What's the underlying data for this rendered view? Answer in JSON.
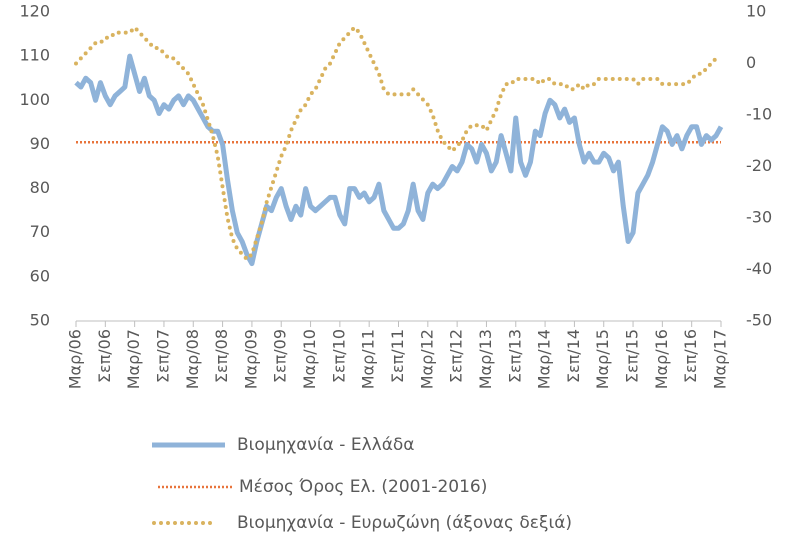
{
  "chart_data": {
    "type": "line",
    "categories": [
      "Μαρ/06",
      null,
      null,
      null,
      null,
      null,
      "Σεπ/06",
      null,
      null,
      null,
      null,
      null,
      "Μαρ/07",
      null,
      null,
      null,
      null,
      null,
      "Σεπ/07",
      null,
      null,
      null,
      null,
      null,
      "Μαρ/08",
      null,
      null,
      null,
      null,
      null,
      "Σεπ/08",
      null,
      null,
      null,
      null,
      null,
      "Μαρ/09",
      null,
      null,
      null,
      null,
      null,
      "Σεπ/09",
      null,
      null,
      null,
      null,
      null,
      "Μαρ/10",
      null,
      null,
      null,
      null,
      null,
      "Σεπ/10",
      null,
      null,
      null,
      null,
      null,
      "Μαρ/11",
      null,
      null,
      null,
      null,
      null,
      "Σεπ/11",
      null,
      null,
      null,
      null,
      null,
      "Μαρ/12",
      null,
      null,
      null,
      null,
      null,
      "Σεπ/12",
      null,
      null,
      null,
      null,
      null,
      "Μαρ/13",
      null,
      null,
      null,
      null,
      null,
      "Σεπ/13",
      null,
      null,
      null,
      null,
      null,
      "Μαρ/14",
      null,
      null,
      null,
      null,
      null,
      "Σεπ/14",
      null,
      null,
      null,
      null,
      null,
      "Μαρ/15",
      null,
      null,
      null,
      null,
      null,
      "Σεπ/15",
      null,
      null,
      null,
      null,
      null,
      "Μαρ/16",
      null,
      null,
      null,
      null,
      null,
      "Σεπ/16",
      null,
      null,
      null,
      null,
      null,
      "Μαρ/17"
    ],
    "series": [
      {
        "name": "Βιομηχανία  - Ελλάδα",
        "color": "#8fb3d9",
        "style": "solid",
        "values": [
          104,
          103,
          105,
          104,
          100,
          104,
          101,
          99,
          101,
          102,
          103,
          110,
          106,
          102,
          105,
          101,
          100,
          97,
          99,
          98,
          100,
          101,
          99,
          101,
          100,
          98,
          96,
          94,
          93,
          93,
          90,
          82,
          75,
          70,
          68,
          65,
          63,
          68,
          72,
          76,
          75,
          78,
          80,
          76,
          73,
          76,
          74,
          80,
          76,
          75,
          76,
          77,
          78,
          78,
          74,
          72,
          80,
          80,
          78,
          79,
          77,
          78,
          81,
          75,
          73,
          71,
          71,
          72,
          75,
          81,
          75,
          73,
          79,
          81,
          80,
          81,
          83,
          85,
          84,
          86,
          90,
          89,
          86,
          90,
          88,
          84,
          86,
          92,
          88,
          84,
          96,
          86,
          83,
          86,
          93,
          92,
          97,
          100,
          99,
          96,
          98,
          95,
          96,
          90,
          86,
          88,
          86,
          86,
          88,
          87,
          84,
          86,
          76,
          68,
          70,
          79,
          81,
          83,
          86,
          90,
          94,
          93,
          90,
          92,
          89,
          92,
          94,
          94,
          90,
          92,
          91,
          92,
          94
        ]
      },
      {
        "name": "Βιομηχανία - Ευρωζώνη (άξονας δεξιά)",
        "color": "#d9b35f",
        "style": "dots",
        "axis": "y2",
        "values": [
          0,
          1,
          2,
          3,
          4,
          4,
          5,
          5,
          6,
          6,
          6,
          6,
          7,
          6,
          5,
          4,
          3,
          3,
          2,
          1,
          1,
          0,
          -1,
          -2,
          -4,
          -6,
          -8,
          -11,
          -14,
          -18,
          -24,
          -30,
          -34,
          -36,
          -37,
          -38,
          -37,
          -34,
          -31,
          -27,
          -24,
          -21,
          -18,
          -16,
          -13,
          -11,
          -9,
          -8,
          -6,
          -5,
          -3,
          -1,
          0,
          2,
          4,
          5,
          6,
          7,
          6,
          4,
          2,
          0,
          -2,
          -5,
          -6,
          -6,
          -6,
          -6,
          -6,
          -5,
          -6,
          -7,
          -8,
          -10,
          -13,
          -15,
          -16,
          -17,
          -16,
          -15,
          -13,
          -12,
          -12,
          -12,
          -13,
          -11,
          -9,
          -6,
          -4,
          -4,
          -3,
          -3,
          -3,
          -3,
          -3,
          -4,
          -3,
          -3,
          -4,
          -4,
          -4,
          -5,
          -5,
          -4,
          -5,
          -4,
          -4,
          -3,
          -3,
          -3,
          -3,
          -3,
          -3,
          -3,
          -3,
          -4,
          -3,
          -3,
          -3,
          -3,
          -4,
          -4,
          -4,
          -4,
          -4,
          -4,
          -3,
          -2,
          -2,
          -1,
          0,
          1,
          1
        ]
      }
    ],
    "reference_line": {
      "name": "Μέσος Όρος Ελ. (2001-2016)",
      "value": 90.5,
      "color": "#e8743b"
    },
    "ylim": [
      50,
      120
    ],
    "yticks": [
      50,
      60,
      70,
      80,
      90,
      100,
      110,
      120
    ],
    "y2lim": [
      -50,
      10
    ],
    "y2ticks": [
      -50,
      -40,
      -30,
      -20,
      -10,
      0,
      10
    ],
    "grid": false,
    "legend": "bottom"
  }
}
